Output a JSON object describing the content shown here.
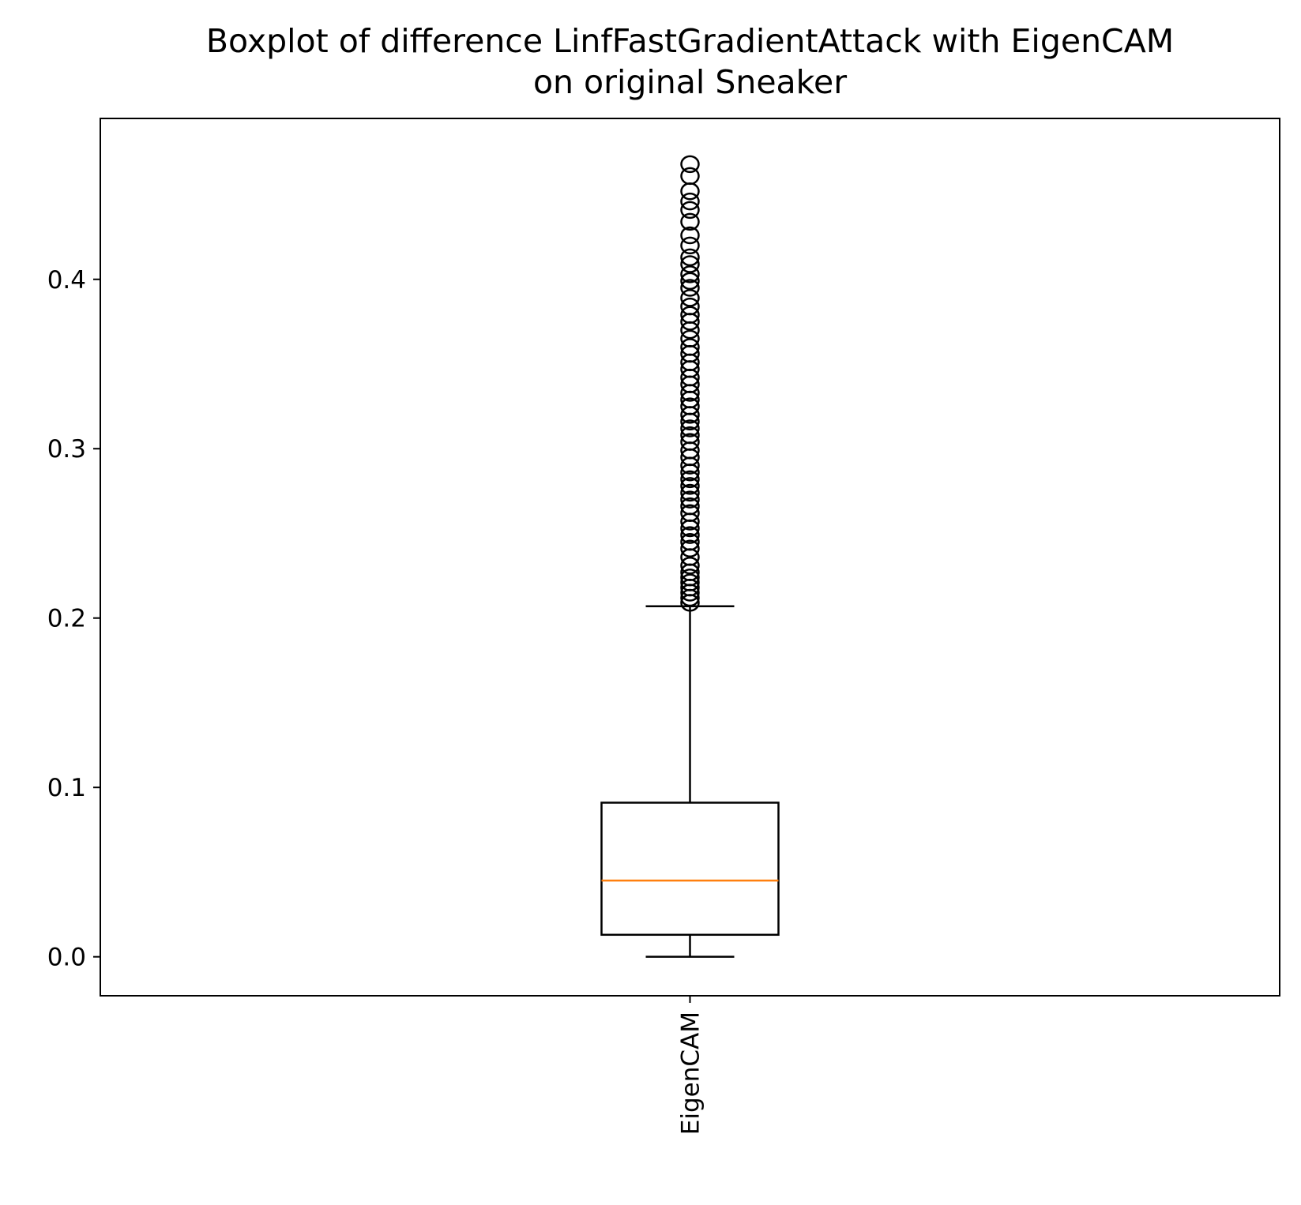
{
  "chart_data": {
    "type": "boxplot",
    "title_lines": [
      "Boxplot of difference LinfFastGradientAttack with EigenCAM",
      "on original Sneaker"
    ],
    "xlabel": "",
    "ylabel": "",
    "categories": [
      "EigenCAM"
    ],
    "ylim": [
      -0.023,
      0.495
    ],
    "yticks": [
      0.0,
      0.1,
      0.2,
      0.3,
      0.4
    ],
    "ytick_labels": [
      "0.0",
      "0.1",
      "0.2",
      "0.3",
      "0.4"
    ],
    "grid": false,
    "boxes": [
      {
        "name": "EigenCAM",
        "whisker_low": 0.0,
        "q1": 0.013,
        "median": 0.045,
        "q3": 0.091,
        "whisker_high": 0.207,
        "outliers": [
          0.209,
          0.212,
          0.215,
          0.218,
          0.221,
          0.224,
          0.227,
          0.231,
          0.236,
          0.241,
          0.245,
          0.249,
          0.253,
          0.257,
          0.262,
          0.266,
          0.27,
          0.274,
          0.278,
          0.282,
          0.286,
          0.29,
          0.295,
          0.299,
          0.304,
          0.308,
          0.312,
          0.316,
          0.32,
          0.325,
          0.329,
          0.333,
          0.338,
          0.342,
          0.347,
          0.351,
          0.356,
          0.36,
          0.365,
          0.37,
          0.375,
          0.379,
          0.384,
          0.389,
          0.395,
          0.399,
          0.403,
          0.409,
          0.413,
          0.42,
          0.426,
          0.434,
          0.441,
          0.446,
          0.452,
          0.461,
          0.468
        ]
      }
    ],
    "colors": {
      "box": "#000000",
      "median": "#ff7f0e",
      "outlier": "#000000"
    }
  }
}
